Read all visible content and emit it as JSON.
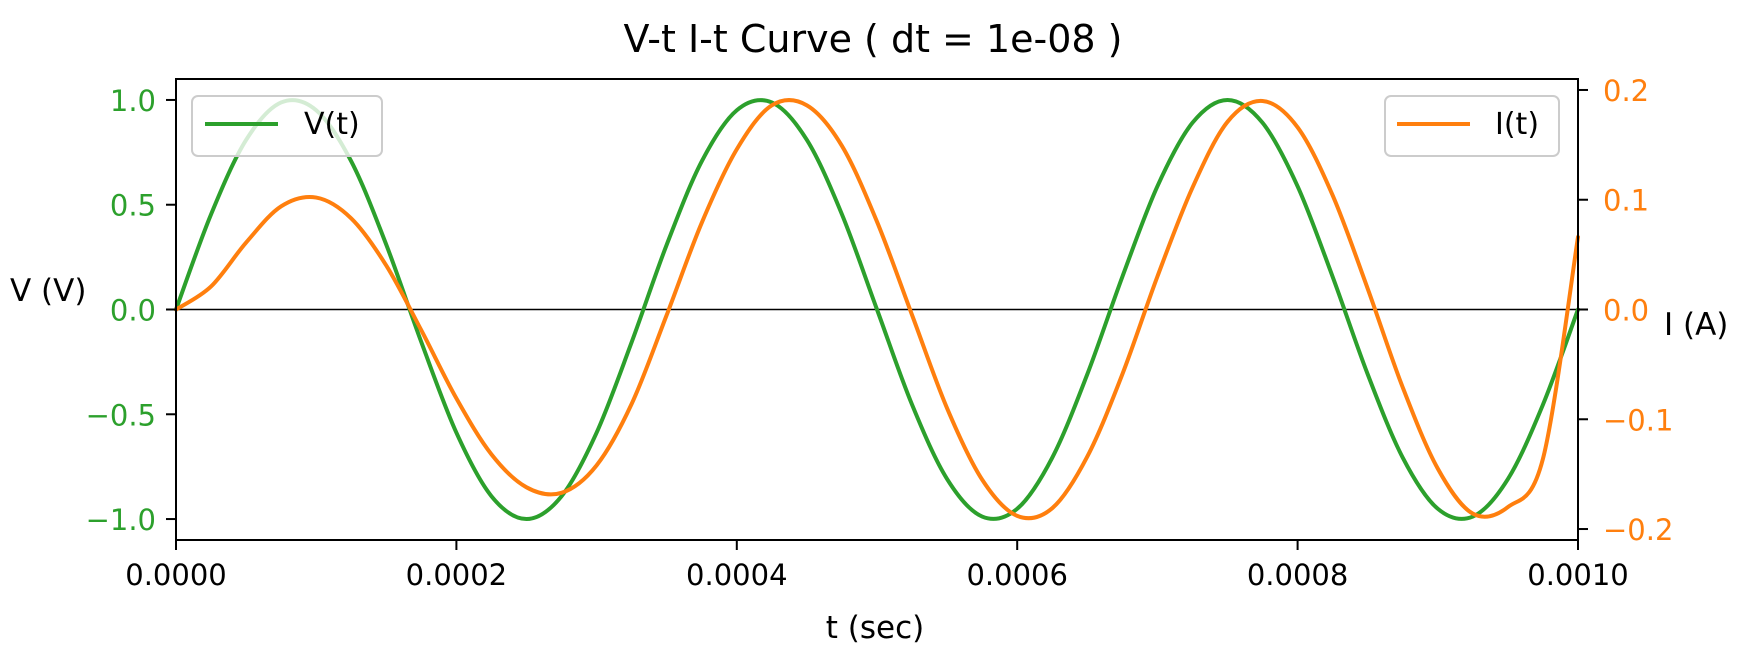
{
  "chart_data": {
    "type": "line",
    "title": "V-t I-t Curve ( dt = 1e-08 )",
    "xlabel": "t (sec)",
    "ylabel_left": "V (V)",
    "ylabel_right": "I (A)",
    "xlim": [
      0,
      0.001
    ],
    "ylim_left": [
      -1.1,
      1.1
    ],
    "ylim_right": [
      -0.21,
      0.21
    ],
    "x_ticks": [
      {
        "value": 0,
        "label": "0.0000"
      },
      {
        "value": 0.0002,
        "label": "0.0002"
      },
      {
        "value": 0.0004,
        "label": "0.0004"
      },
      {
        "value": 0.0006,
        "label": "0.0006"
      },
      {
        "value": 0.0008,
        "label": "0.0008"
      },
      {
        "value": 0.001,
        "label": "0.0010"
      }
    ],
    "y_left_ticks": [
      {
        "value": 1.0,
        "label": "1.0"
      },
      {
        "value": 0.5,
        "label": "0.5"
      },
      {
        "value": 0.0,
        "label": "0.0"
      },
      {
        "value": -0.5,
        "label": "−0.5"
      },
      {
        "value": -1.0,
        "label": "−1.0"
      }
    ],
    "y_right_ticks": [
      {
        "value": 0.2,
        "label": "0.2"
      },
      {
        "value": 0.1,
        "label": "0.1"
      },
      {
        "value": 0.0,
        "label": "0.0"
      },
      {
        "value": -0.1,
        "label": "−0.1"
      },
      {
        "value": -0.2,
        "label": "−0.2"
      }
    ],
    "grid": false,
    "zero_line": true,
    "series": [
      {
        "name": "V(t)",
        "axis": "left",
        "color": "#2ca02c",
        "legend": "top-left",
        "x": [
          0,
          2.5e-05,
          5e-05,
          7.5e-05,
          0.0001,
          0.000125,
          0.00015,
          0.000175,
          0.0002,
          0.000225,
          0.00025,
          0.000275,
          0.0003,
          0.000325,
          0.00035,
          0.000375,
          0.0004,
          0.000425,
          0.00045,
          0.000475,
          0.0005,
          0.000525,
          0.00055,
          0.000575,
          0.0006,
          0.000625,
          0.00065,
          0.000675,
          0.0007,
          0.000725,
          0.00075,
          0.000775,
          0.0008,
          0.000825,
          0.00085,
          0.000875,
          0.0009,
          0.000925,
          0.00095,
          0.000975,
          0.001
        ],
        "values": [
          0,
          0.454,
          0.809,
          0.988,
          0.951,
          0.707,
          0.309,
          -0.156,
          -0.588,
          -0.891,
          -1.0,
          -0.891,
          -0.588,
          -0.156,
          0.309,
          0.707,
          0.951,
          0.988,
          0.809,
          0.454,
          0.0,
          -0.454,
          -0.809,
          -0.988,
          -0.951,
          -0.707,
          -0.309,
          0.156,
          0.588,
          0.891,
          1.0,
          0.891,
          0.588,
          0.156,
          -0.309,
          -0.707,
          -0.951,
          -0.988,
          -0.809,
          -0.454,
          0.0
        ]
      },
      {
        "name": "I(t)",
        "axis": "right",
        "color": "#ff7f0e",
        "legend": "top-right",
        "x": [
          0,
          2.5e-05,
          5e-05,
          7.5e-05,
          0.0001,
          0.000125,
          0.00015,
          0.000175,
          0.0002,
          0.000225,
          0.00025,
          0.000275,
          0.0003,
          0.000325,
          0.00035,
          0.000375,
          0.0004,
          0.000425,
          0.00045,
          0.000475,
          0.0005,
          0.000525,
          0.00055,
          0.000575,
          0.0006,
          0.000625,
          0.00065,
          0.000675,
          0.0007,
          0.000725,
          0.00075,
          0.000775,
          0.0008,
          0.000825,
          0.00085,
          0.000875,
          0.0009,
          0.000925,
          0.00095,
          0.000975,
          0.001
        ],
        "values": [
          0,
          0.021,
          0.061,
          0.094,
          0.102,
          0.083,
          0.04,
          -0.019,
          -0.081,
          -0.132,
          -0.162,
          -0.167,
          -0.142,
          -0.086,
          -0.005,
          0.079,
          0.146,
          0.186,
          0.186,
          0.149,
          0.08,
          -0.005,
          -0.09,
          -0.155,
          -0.188,
          -0.181,
          -0.134,
          -0.059,
          0.03,
          0.111,
          0.171,
          0.19,
          0.166,
          0.104,
          0.019,
          -0.071,
          -0.145,
          -0.186,
          -0.18,
          -0.136,
          0.066
        ]
      }
    ]
  }
}
